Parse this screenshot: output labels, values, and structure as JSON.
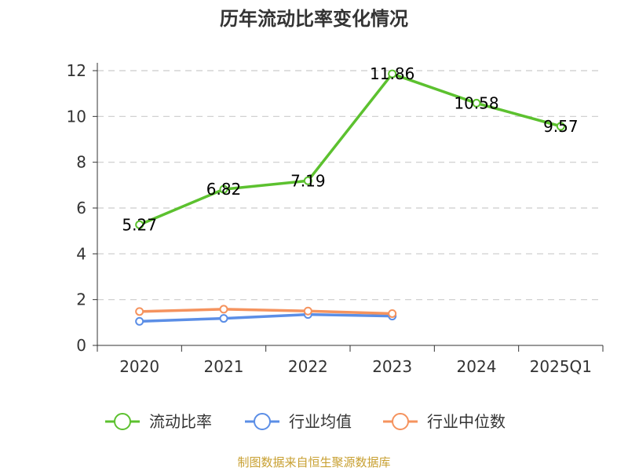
{
  "chart_data": {
    "type": "line",
    "title": "历年流动比率变化情况",
    "categories": [
      "2020",
      "2021",
      "2022",
      "2023",
      "2024",
      "2025Q1"
    ],
    "ylim": [
      0,
      12
    ],
    "yticks": [
      0,
      2,
      4,
      6,
      8,
      10,
      12
    ],
    "grid": true,
    "legend_position": "bottom",
    "series": [
      {
        "name": "流动比率",
        "color": "#5cc12f",
        "values": [
          5.27,
          6.82,
          7.19,
          11.86,
          10.58,
          9.57
        ],
        "labels": [
          "5.27",
          "6.82",
          "7.19",
          "11.86",
          "10.58",
          "9.57"
        ]
      },
      {
        "name": "行业均值",
        "color": "#5b8ee6",
        "values": [
          1.05,
          1.18,
          1.35,
          1.28,
          null,
          null
        ]
      },
      {
        "name": "行业中位数",
        "color": "#f5935e",
        "values": [
          1.48,
          1.58,
          1.5,
          1.39,
          null,
          null
        ]
      }
    ],
    "source": "制图数据来自恒生聚源数据库"
  }
}
